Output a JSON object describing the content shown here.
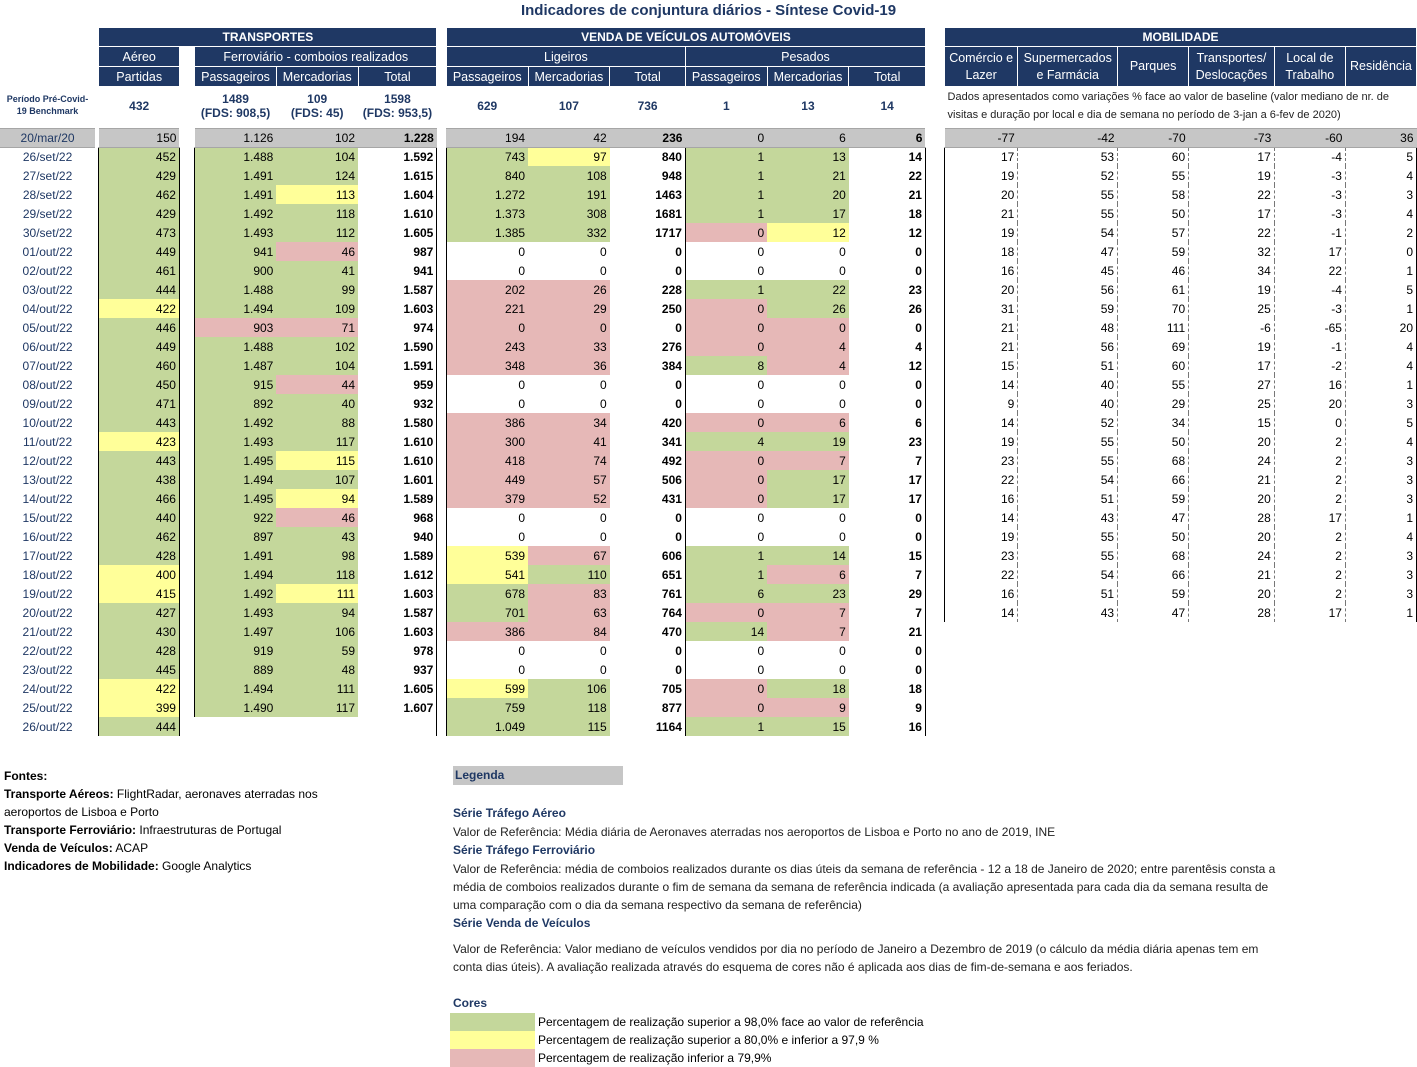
{
  "title": "Indicadores de conjuntura diários - Síntese Covid-19",
  "headers": {
    "transportes": "TRANSPORTES",
    "venda": "VENDA DE VEÍCULOS AUTOMÓVEIS",
    "mobilidade": "MOBILIDADE",
    "aereo": "Aéreo",
    "ferroviario": "Ferroviário - comboios realizados",
    "ligeiros": "Ligeiros",
    "pesados": "Pesados",
    "partidas": "Partidas",
    "passageiros": "Passageiros",
    "mercadorias": "Mercadorias",
    "total": "Total",
    "mob_cols": [
      "Comércio e Lazer",
      "Supermercados e Farmácia",
      "Parques",
      "Transportes/ Deslocações",
      "Local de Trabalho",
      "Residência"
    ]
  },
  "benchmark": {
    "label": "Período Pré-Covid-19 Benchmark",
    "aereo": "432",
    "f_pass": "1489",
    "f_pass_fds": "(FDS: 908,5)",
    "f_merc": "109",
    "f_merc_fds": "(FDS: 45)",
    "f_tot": "1598",
    "f_tot_fds": "(FDS: 953,5)",
    "l_pass": "629",
    "l_merc": "107",
    "l_tot": "736",
    "p_pass": "1",
    "p_merc": "13",
    "p_tot": "14",
    "mob_note": "Dados apresentados como variações % face ao valor de baseline (valor mediano de nr. de visitas e duração por local e dia de semana no período de 3-jan a 6-fev de 2020)"
  },
  "reference_row": [
    "20/mar/20",
    "150",
    "1.126",
    "102",
    "1.228",
    "194",
    "42",
    "236",
    "0",
    "6",
    "6",
    "-77",
    "-42",
    "-70",
    "-73",
    "-60",
    "36"
  ],
  "rows": [
    [
      "26/set/22",
      "452:g",
      "1.488:g",
      "104:g",
      "1.592",
      "743:g",
      "97:y",
      "840",
      "1:g",
      "13:g",
      "14",
      "17",
      "53",
      "60",
      "17",
      "-4",
      "5"
    ],
    [
      "27/set/22",
      "429:g",
      "1.491:g",
      "124:g",
      "1.615",
      "840:g",
      "108:g",
      "948",
      "1:g",
      "21:g",
      "22",
      "19",
      "52",
      "55",
      "19",
      "-3",
      "4"
    ],
    [
      "28/set/22",
      "462:g",
      "1.491:g",
      "113:y",
      "1.604",
      "1.272:g",
      "191:g",
      "1463",
      "1:g",
      "20:g",
      "21",
      "20",
      "55",
      "58",
      "22",
      "-3",
      "3"
    ],
    [
      "29/set/22",
      "429:g",
      "1.492:g",
      "118:g",
      "1.610",
      "1.373:g",
      "308:g",
      "1681",
      "1:g",
      "17:g",
      "18",
      "21",
      "55",
      "50",
      "17",
      "-3",
      "4"
    ],
    [
      "30/set/22",
      "473:g",
      "1.493:g",
      "112:g",
      "1.605",
      "1.385:g",
      "332:g",
      "1717",
      "0:r",
      "12:y",
      "12",
      "19",
      "54",
      "57",
      "22",
      "-1",
      "2"
    ],
    [
      "01/out/22",
      "449:g",
      "941:g",
      "46:r",
      "987",
      "0",
      "0",
      "0",
      "0",
      "0",
      "0",
      "18",
      "47",
      "59",
      "32",
      "17",
      "0"
    ],
    [
      "02/out/22",
      "461:g",
      "900:g",
      "41:g",
      "941",
      "0",
      "0",
      "0",
      "0",
      "0",
      "0",
      "16",
      "45",
      "46",
      "34",
      "22",
      "1"
    ],
    [
      "03/out/22",
      "444:g",
      "1.488:g",
      "99:g",
      "1.587",
      "202:r",
      "26:r",
      "228",
      "1:g",
      "22:g",
      "23",
      "20",
      "56",
      "61",
      "19",
      "-4",
      "5"
    ],
    [
      "04/out/22",
      "422:y",
      "1.494:g",
      "109:g",
      "1.603",
      "221:r",
      "29:r",
      "250",
      "0:r",
      "26:g",
      "26",
      "31",
      "59",
      "70",
      "25",
      "-3",
      "1"
    ],
    [
      "05/out/22",
      "446:g",
      "903:r",
      "71:r",
      "974",
      "0:r",
      "0:r",
      "0",
      "0:r",
      "0:r",
      "0",
      "21",
      "48",
      "111",
      "-6",
      "-65",
      "20"
    ],
    [
      "06/out/22",
      "449:g",
      "1.488:g",
      "102:g",
      "1.590",
      "243:r",
      "33:r",
      "276",
      "0:r",
      "4:r",
      "4",
      "21",
      "56",
      "69",
      "19",
      "-1",
      "4"
    ],
    [
      "07/out/22",
      "460:g",
      "1.487:g",
      "104:g",
      "1.591",
      "348:r",
      "36:r",
      "384",
      "8:g",
      "4:r",
      "12",
      "15",
      "51",
      "60",
      "17",
      "-2",
      "4"
    ],
    [
      "08/out/22",
      "450:g",
      "915:g",
      "44:r",
      "959",
      "0",
      "0",
      "0",
      "0",
      "0",
      "0",
      "14",
      "40",
      "55",
      "27",
      "16",
      "1"
    ],
    [
      "09/out/22",
      "471:g",
      "892:g",
      "40:g",
      "932",
      "0",
      "0",
      "0",
      "0",
      "0",
      "0",
      "9",
      "40",
      "29",
      "25",
      "20",
      "3"
    ],
    [
      "10/out/22",
      "443:g",
      "1.492:g",
      "88:g",
      "1.580",
      "386:r",
      "34:r",
      "420",
      "0:r",
      "6:r",
      "6",
      "14",
      "52",
      "34",
      "15",
      "0",
      "5"
    ],
    [
      "11/out/22",
      "423:y",
      "1.493:g",
      "117:g",
      "1.610",
      "300:r",
      "41:r",
      "341",
      "4:g",
      "19:g",
      "23",
      "19",
      "55",
      "50",
      "20",
      "2",
      "4"
    ],
    [
      "12/out/22",
      "443:g",
      "1.495:g",
      "115:y",
      "1.610",
      "418:r",
      "74:r",
      "492",
      "0:r",
      "7:r",
      "7",
      "23",
      "55",
      "68",
      "24",
      "2",
      "3"
    ],
    [
      "13/out/22",
      "438:g",
      "1.494:g",
      "107:g",
      "1.601",
      "449:r",
      "57:r",
      "506",
      "0:r",
      "17:g",
      "17",
      "22",
      "54",
      "66",
      "21",
      "2",
      "3"
    ],
    [
      "14/out/22",
      "466:g",
      "1.495:g",
      "94:y",
      "1.589",
      "379:r",
      "52:r",
      "431",
      "0:r",
      "17:g",
      "17",
      "16",
      "51",
      "59",
      "20",
      "2",
      "3"
    ],
    [
      "15/out/22",
      "440:g",
      "922:g",
      "46:r",
      "968",
      "0",
      "0",
      "0",
      "0",
      "0",
      "0",
      "14",
      "43",
      "47",
      "28",
      "17",
      "1"
    ],
    [
      "16/out/22",
      "462:g",
      "897:g",
      "43:g",
      "940",
      "0",
      "0",
      "0",
      "0",
      "0",
      "0",
      "19",
      "55",
      "50",
      "20",
      "2",
      "4"
    ],
    [
      "17/out/22",
      "428:g",
      "1.491:g",
      "98:g",
      "1.589",
      "539:y",
      "67:r",
      "606",
      "1:g",
      "14:g",
      "15",
      "23",
      "55",
      "68",
      "24",
      "2",
      "3"
    ],
    [
      "18/out/22",
      "400:y",
      "1.494:g",
      "118:g",
      "1.612",
      "541:y",
      "110:g",
      "651",
      "1:g",
      "6:r",
      "7",
      "22",
      "54",
      "66",
      "21",
      "2",
      "3"
    ],
    [
      "19/out/22",
      "415:y",
      "1.492:g",
      "111:y",
      "1.603",
      "678:g",
      "83:r",
      "761",
      "6:g",
      "23:g",
      "29",
      "16",
      "51",
      "59",
      "20",
      "2",
      "3"
    ],
    [
      "20/out/22",
      "427:g",
      "1.493:g",
      "94:g",
      "1.587",
      "701:g",
      "63:r",
      "764",
      "0:r",
      "7:r",
      "7",
      "14",
      "43",
      "47",
      "28",
      "17",
      "1"
    ],
    [
      "21/out/22",
      "430:g",
      "1.497:g",
      "106:g",
      "1.603",
      "386:r",
      "84:r",
      "470",
      "14:g",
      "7:r",
      "21",
      "",
      "",
      "",
      "",
      "",
      ""
    ],
    [
      "22/out/22",
      "428:g",
      "919:g",
      "59:g",
      "978",
      "0",
      "0",
      "0",
      "0",
      "0",
      "0",
      "",
      "",
      "",
      "",
      "",
      ""
    ],
    [
      "23/out/22",
      "445:g",
      "889:g",
      "48:g",
      "937",
      "0",
      "0",
      "0",
      "0",
      "0",
      "0",
      "",
      "",
      "",
      "",
      "",
      ""
    ],
    [
      "24/out/22",
      "422:y",
      "1.494:g",
      "111:g",
      "1.605",
      "599:y",
      "106:g",
      "705",
      "0:r",
      "18:g",
      "18",
      "",
      "",
      "",
      "",
      "",
      ""
    ],
    [
      "25/out/22",
      "399:y",
      "1.490:g",
      "117:g",
      "1.607",
      "759:g",
      "118:g",
      "877",
      "0:r",
      "9:r",
      "9",
      "",
      "",
      "",
      "",
      "",
      ""
    ],
    [
      "26/out/22",
      "444:g",
      "",
      "",
      "",
      "1.049:g",
      "115:g",
      "1164",
      "1:g",
      "15:g",
      "16",
      "",
      "",
      "",
      "",
      "",
      ""
    ]
  ],
  "fontes": {
    "title": "Fontes:",
    "items": [
      {
        "label": "Transporte Aéreos:",
        "text": " FlightRadar, aeronaves aterradas nos aeroportos de Lisboa e Porto"
      },
      {
        "label": "Transporte Ferroviário:",
        "text": " Infraestruturas de Portugal"
      },
      {
        "label": "Venda de Veículos:",
        "text": " ACAP"
      },
      {
        "label": "Indicadores de Mobilidade:",
        "text": " Google Analytics"
      }
    ]
  },
  "legenda": {
    "title": "Legenda",
    "sections": [
      {
        "title": "Série Tráfego Aéreo",
        "text": "Valor de Referência: Média diária de Aeronaves aterradas nos aeroportos de Lisboa e Porto no ano de 2019, INE",
        "gap": false
      },
      {
        "title": "Série Tráfego Ferroviário",
        "text": "Valor de Referência: média de comboios realizados durante os dias úteis da semana de referência - 12 a 18 de Janeiro de 2020; entre parentêsis consta a média de comboios realizados durante o fim de semana da semana de referência indicada (a avaliação apresentada para cada dia da semana resulta de uma comparação com o dia da semana respectivo da semana de referência)",
        "gap": false
      },
      {
        "title": "Série Venda de Veículos",
        "text": "Valor de Referência: Valor mediano de veículos vendidos por dia no período de Janeiro a Dezembro de 2019 (o cálculo da média diária apenas tem em conta dias úteis). A avaliação realizada através do esquema de cores não é aplicada aos dias de fim-de-semana e aos feriados.",
        "gap": true
      }
    ],
    "cores_title": "Cores",
    "cores": [
      {
        "color": "#c4d79b",
        "text": "Percentagem de realização superior a 98,0% face ao valor de referência"
      },
      {
        "color": "#ffff99",
        "text": "Percentagem de realização superior a 80,0% e inferior a 97,9 %"
      },
      {
        "color": "#e6b8b7",
        "text": "Percentagem de realização inferior a 79,9%"
      }
    ]
  }
}
